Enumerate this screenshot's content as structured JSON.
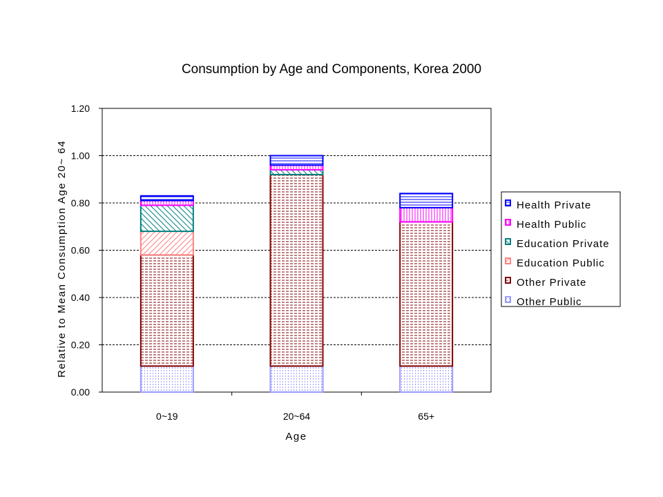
{
  "chart_data": {
    "type": "bar",
    "stacked": true,
    "title": "Consumption by Age and Components, Korea 2000",
    "xlabel": "Age",
    "ylabel": "Relative to Mean Consumption Age 20~ 64",
    "categories": [
      "0~19",
      "20~64",
      "65+"
    ],
    "ylim": [
      0,
      1.2
    ],
    "yticks": [
      "0.00",
      "0.20",
      "0.40",
      "0.60",
      "0.80",
      "1.00",
      "1.20"
    ],
    "grid": true,
    "legend_position": "right",
    "series": [
      {
        "name": "Other Public",
        "values": [
          0.11,
          0.11,
          0.11
        ],
        "color": "#9999ff",
        "pattern": "vdots"
      },
      {
        "name": "Other Private",
        "values": [
          0.47,
          0.81,
          0.61
        ],
        "color": "#800000",
        "pattern": "hdash"
      },
      {
        "name": "Education Public",
        "values": [
          0.1,
          0.0,
          0.0
        ],
        "color": "#ff8080",
        "pattern": "diag-up"
      },
      {
        "name": "Education Private",
        "values": [
          0.11,
          0.02,
          0.0
        ],
        "color": "#008080",
        "pattern": "diag-down"
      },
      {
        "name": "Health Public",
        "values": [
          0.02,
          0.02,
          0.06
        ],
        "color": "#ff00ff",
        "pattern": "vlines"
      },
      {
        "name": "Health Private",
        "values": [
          0.02,
          0.04,
          0.06
        ],
        "color": "#0000ff",
        "pattern": "hlines"
      }
    ],
    "legend_order": [
      "Health Private",
      "Health Public",
      "Education Private",
      "Education Public",
      "Other Private",
      "Other Public"
    ]
  }
}
